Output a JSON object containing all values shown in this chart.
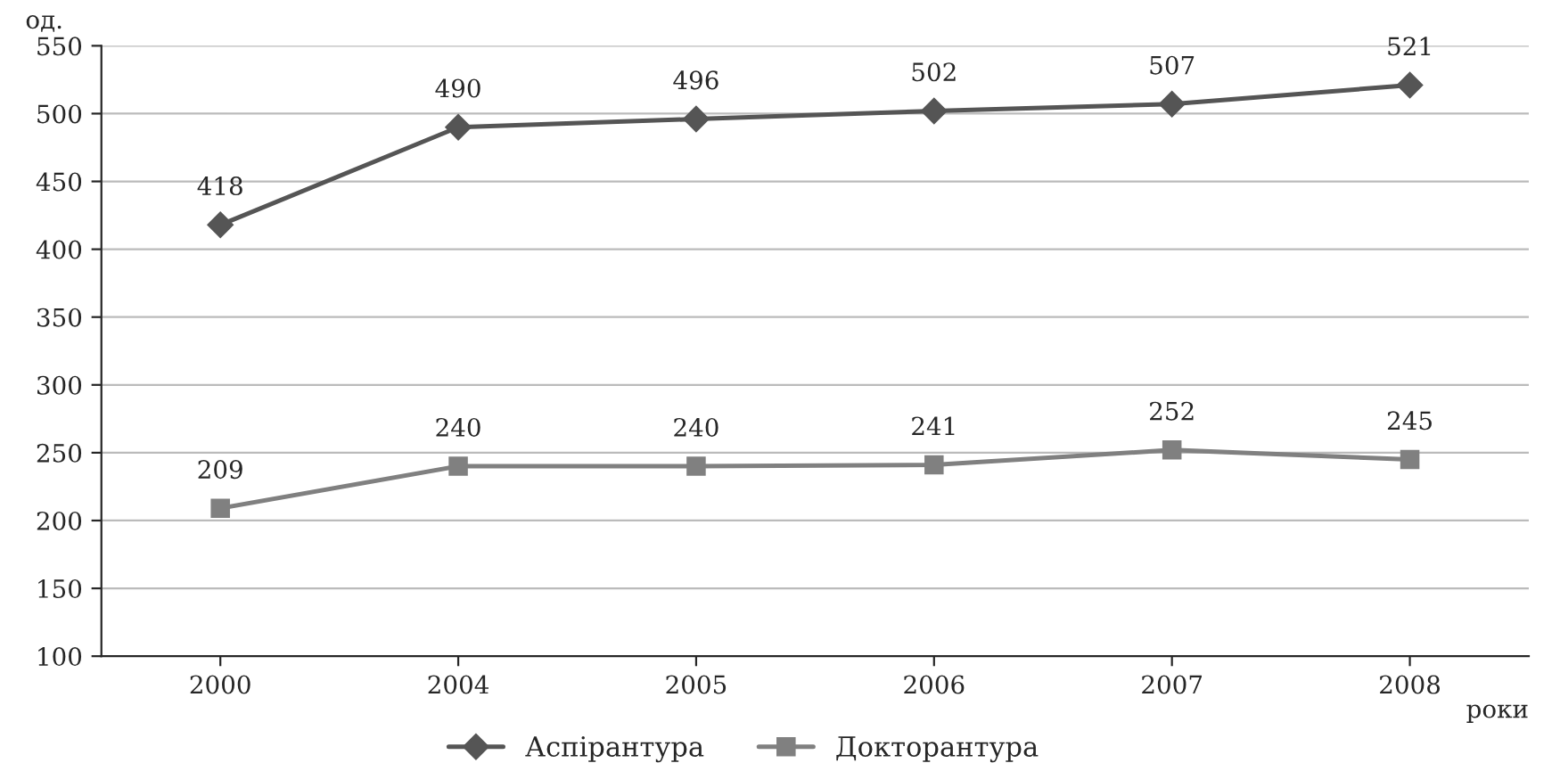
{
  "chart_data": {
    "type": "line",
    "ylabel": "од.",
    "xlabel": "роки",
    "categories": [
      "2000",
      "2004",
      "2005",
      "2006",
      "2007",
      "2008"
    ],
    "series": [
      {
        "name": "Аспірантура",
        "color": "#555555",
        "marker": "diamond",
        "values": [
          418,
          490,
          496,
          502,
          507,
          521
        ]
      },
      {
        "name": "Докторантура",
        "color": "#808080",
        "marker": "square",
        "values": [
          209,
          240,
          240,
          241,
          252,
          245
        ]
      }
    ],
    "ylim": [
      100,
      550
    ],
    "yticks": [
      100,
      150,
      200,
      250,
      300,
      350,
      400,
      450,
      500,
      550
    ],
    "grid": "y",
    "legend": "bottom",
    "data_labels": true,
    "line_style": "solid"
  }
}
